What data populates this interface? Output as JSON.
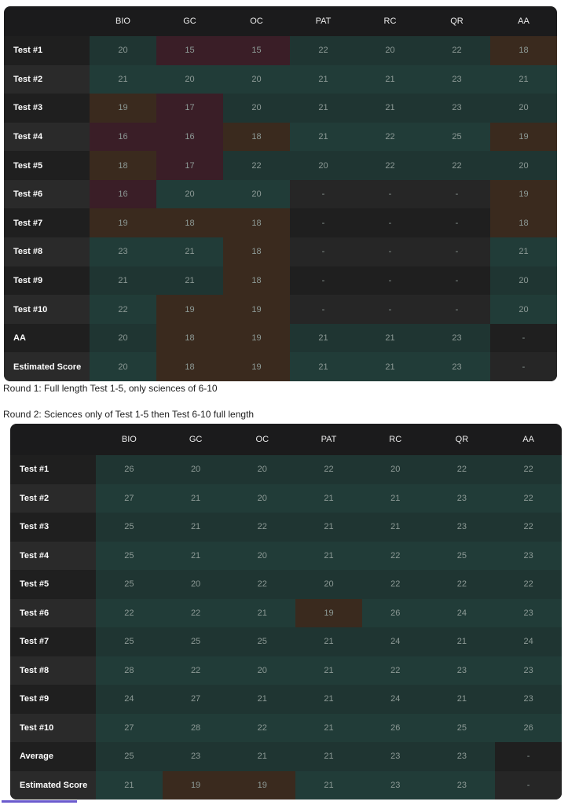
{
  "colors": {
    "panel_bg": "#1b1b1c",
    "green": "#1f3532",
    "green_alt": "#203b38",
    "purple": "#3a1e27",
    "brown": "#3a2a1e",
    "neutral": "#262626",
    "label_dark": "#1f1f1f",
    "label_light": "#2a2a2a"
  },
  "table1": {
    "columns": [
      "BIO",
      "GC",
      "OC",
      "PAT",
      "RC",
      "QR",
      "AA"
    ],
    "rows": [
      {
        "label": "Test #1",
        "values": [
          "20",
          "15",
          "15",
          "22",
          "20",
          "22",
          "18"
        ],
        "tones": [
          "g",
          "p",
          "p",
          "g",
          "g",
          "g",
          "b"
        ]
      },
      {
        "label": "Test #2",
        "values": [
          "21",
          "20",
          "20",
          "21",
          "21",
          "23",
          "21"
        ],
        "tones": [
          "g2",
          "g2",
          "g2",
          "g2",
          "g2",
          "g2",
          "g2"
        ]
      },
      {
        "label": "Test #3",
        "values": [
          "19",
          "17",
          "20",
          "21",
          "21",
          "23",
          "20"
        ],
        "tones": [
          "b",
          "p",
          "g",
          "g",
          "g",
          "g",
          "g"
        ]
      },
      {
        "label": "Test #4",
        "values": [
          "16",
          "16",
          "18",
          "21",
          "22",
          "25",
          "19"
        ],
        "tones": [
          "p",
          "p",
          "b",
          "g2",
          "g2",
          "g2",
          "b"
        ]
      },
      {
        "label": "Test #5",
        "values": [
          "18",
          "17",
          "22",
          "20",
          "22",
          "22",
          "20"
        ],
        "tones": [
          "b",
          "p",
          "g",
          "g",
          "g",
          "g",
          "g"
        ]
      },
      {
        "label": "Test #6",
        "values": [
          "16",
          "20",
          "20",
          "-",
          "-",
          "-",
          "19"
        ],
        "tones": [
          "p",
          "g2",
          "g2",
          "n",
          "n",
          "n",
          "b"
        ]
      },
      {
        "label": "Test #7",
        "values": [
          "19",
          "18",
          "18",
          "-",
          "-",
          "-",
          "18"
        ],
        "tones": [
          "b",
          "b",
          "b",
          "nd",
          "nd",
          "nd",
          "b"
        ]
      },
      {
        "label": "Test #8",
        "values": [
          "23",
          "21",
          "18",
          "-",
          "-",
          "-",
          "21"
        ],
        "tones": [
          "g2",
          "g2",
          "b",
          "n",
          "n",
          "n",
          "g2"
        ]
      },
      {
        "label": "Test #9",
        "values": [
          "21",
          "21",
          "18",
          "-",
          "-",
          "-",
          "20"
        ],
        "tones": [
          "g",
          "g",
          "b",
          "nd",
          "nd",
          "nd",
          "g"
        ]
      },
      {
        "label": "Test #10",
        "values": [
          "22",
          "19",
          "19",
          "-",
          "-",
          "-",
          "20"
        ],
        "tones": [
          "g2",
          "b",
          "b",
          "n",
          "n",
          "n",
          "g2"
        ]
      },
      {
        "label": "AA",
        "values": [
          "20",
          "18",
          "19",
          "21",
          "21",
          "23",
          "-"
        ],
        "tones": [
          "g",
          "b",
          "b",
          "g",
          "g",
          "g",
          "nd"
        ]
      },
      {
        "label": "Estimated Score",
        "values": [
          "20",
          "18",
          "19",
          "21",
          "21",
          "23",
          "-"
        ],
        "tones": [
          "g2",
          "b",
          "b",
          "g2",
          "g2",
          "g2",
          "n"
        ]
      }
    ]
  },
  "caption1": "Round 1: Full length Test 1-5, only sciences of 6-10",
  "caption2": "Round 2: Sciences only of Test 1-5 then Test 6-10 full length",
  "table2": {
    "columns": [
      "BIO",
      "GC",
      "OC",
      "PAT",
      "RC",
      "QR",
      "AA"
    ],
    "rows": [
      {
        "label": "Test #1",
        "values": [
          "26",
          "20",
          "20",
          "22",
          "20",
          "22",
          "22"
        ],
        "tones": [
          "g",
          "g",
          "g",
          "g",
          "g",
          "g",
          "g"
        ]
      },
      {
        "label": "Test #2",
        "values": [
          "27",
          "21",
          "20",
          "21",
          "21",
          "23",
          "22"
        ],
        "tones": [
          "g2",
          "g2",
          "g2",
          "g2",
          "g2",
          "g2",
          "g2"
        ]
      },
      {
        "label": "Test #3",
        "values": [
          "25",
          "21",
          "22",
          "21",
          "21",
          "23",
          "22"
        ],
        "tones": [
          "g",
          "g",
          "g",
          "g",
          "g",
          "g",
          "g"
        ]
      },
      {
        "label": "Test #4",
        "values": [
          "25",
          "21",
          "20",
          "21",
          "22",
          "25",
          "23"
        ],
        "tones": [
          "g2",
          "g2",
          "g2",
          "g2",
          "g2",
          "g2",
          "g2"
        ]
      },
      {
        "label": "Test #5",
        "values": [
          "25",
          "20",
          "22",
          "20",
          "22",
          "22",
          "22"
        ],
        "tones": [
          "g",
          "g",
          "g",
          "g",
          "g",
          "g",
          "g"
        ]
      },
      {
        "label": "Test #6",
        "values": [
          "22",
          "22",
          "21",
          "19",
          "26",
          "24",
          "23"
        ],
        "tones": [
          "g2",
          "g2",
          "g2",
          "b",
          "g2",
          "g2",
          "g2"
        ]
      },
      {
        "label": "Test #7",
        "values": [
          "25",
          "25",
          "25",
          "21",
          "24",
          "21",
          "24"
        ],
        "tones": [
          "g",
          "g",
          "g",
          "g",
          "g",
          "g",
          "g"
        ]
      },
      {
        "label": "Test #8",
        "values": [
          "28",
          "22",
          "20",
          "21",
          "22",
          "23",
          "23"
        ],
        "tones": [
          "g2",
          "g2",
          "g2",
          "g2",
          "g2",
          "g2",
          "g2"
        ]
      },
      {
        "label": "Test #9",
        "values": [
          "24",
          "27",
          "21",
          "21",
          "24",
          "21",
          "23"
        ],
        "tones": [
          "g",
          "g",
          "g",
          "g",
          "g",
          "g",
          "g"
        ]
      },
      {
        "label": "Test #10",
        "values": [
          "27",
          "28",
          "22",
          "21",
          "26",
          "25",
          "26"
        ],
        "tones": [
          "g2",
          "g2",
          "g2",
          "g2",
          "g2",
          "g2",
          "g2"
        ]
      },
      {
        "label": "Average",
        "values": [
          "25",
          "23",
          "21",
          "21",
          "23",
          "23",
          "-"
        ],
        "tones": [
          "g",
          "g",
          "g",
          "g",
          "g",
          "g",
          "nd"
        ]
      },
      {
        "label": "Estimated Score",
        "values": [
          "21",
          "19",
          "19",
          "21",
          "23",
          "23",
          "-"
        ],
        "tones": [
          "g2",
          "b",
          "b",
          "g2",
          "g2",
          "g2",
          "n"
        ]
      }
    ]
  }
}
